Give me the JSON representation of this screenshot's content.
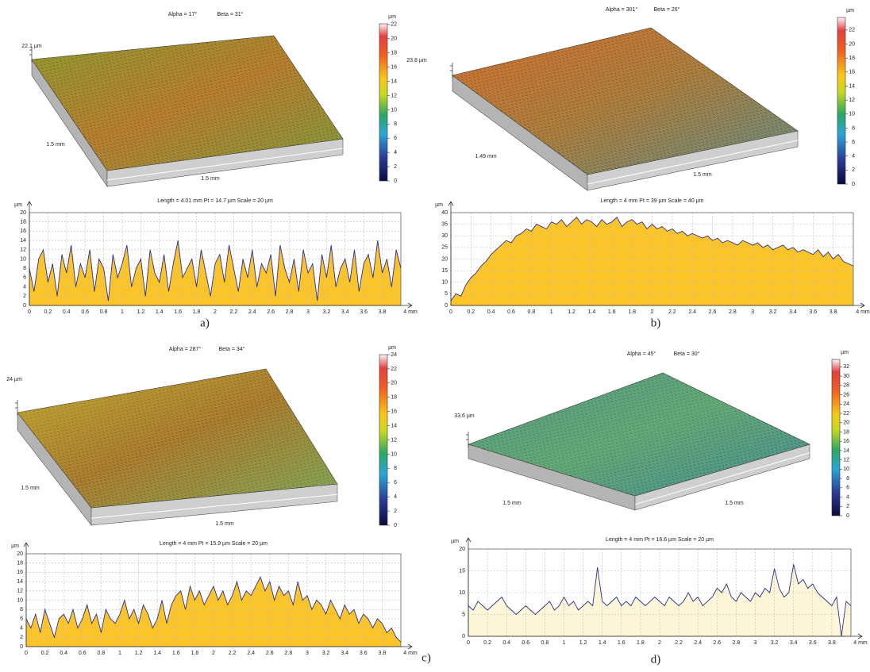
{
  "chart_data": [
    {
      "type": "area",
      "caption": "a)",
      "title": "Length = 4.01 mm  Pt = 14.7 µm  Scale = 20 µm",
      "ylabel": "µm",
      "color": "#2e2e8c",
      "fill": "#fbc52a",
      "xlim": [
        0,
        4
      ],
      "xticks": [
        0,
        0.2,
        0.4,
        0.6,
        0.8,
        1,
        1.2,
        1.4,
        1.6,
        1.8,
        2,
        2.2,
        2.4,
        2.6,
        2.8,
        3,
        3.2,
        3.4,
        3.6,
        3.8,
        {
          "value": 4,
          "label": "4 mm"
        }
      ],
      "ylim": [
        0,
        20
      ],
      "yticks": [
        0,
        2,
        4,
        6,
        8,
        10,
        12,
        14,
        16,
        18,
        20
      ],
      "grid": true,
      "x": [
        0,
        0.05,
        0.1,
        0.15,
        0.2,
        0.25,
        0.3,
        0.35,
        0.4,
        0.45,
        0.5,
        0.55,
        0.6,
        0.65,
        0.7,
        0.75,
        0.8,
        0.85,
        0.9,
        0.95,
        1,
        1.05,
        1.1,
        1.15,
        1.2,
        1.25,
        1.3,
        1.35,
        1.4,
        1.45,
        1.5,
        1.55,
        1.6,
        1.65,
        1.7,
        1.75,
        1.8,
        1.85,
        1.9,
        1.95,
        2,
        2.05,
        2.1,
        2.15,
        2.2,
        2.25,
        2.3,
        2.35,
        2.4,
        2.45,
        2.5,
        2.55,
        2.6,
        2.65,
        2.7,
        2.75,
        2.8,
        2.85,
        2.9,
        2.95,
        3,
        3.05,
        3.1,
        3.15,
        3.2,
        3.25,
        3.3,
        3.35,
        3.4,
        3.45,
        3.5,
        3.55,
        3.6,
        3.65,
        3.7,
        3.75,
        3.8,
        3.85,
        3.9,
        3.95,
        4
      ],
      "values": [
        8,
        3,
        10,
        12,
        5,
        9,
        2,
        11,
        7,
        13,
        4,
        9,
        6,
        12,
        3,
        10,
        8,
        1,
        11,
        6,
        9,
        13,
        4,
        8,
        10,
        2,
        12,
        7,
        5,
        11,
        3,
        9,
        14,
        6,
        8,
        10,
        4,
        12,
        7,
        2,
        9,
        11,
        5,
        13,
        8,
        3,
        10,
        6,
        12,
        4,
        9,
        7,
        11,
        2,
        13,
        8,
        5,
        10,
        3,
        12,
        7,
        9,
        1,
        11,
        6,
        13,
        4,
        8,
        10,
        5,
        12,
        3,
        9,
        11,
        6,
        14,
        7,
        10,
        4,
        12,
        8
      ],
      "surface": {
        "alpha": "Alpha = 17°",
        "beta": "Beta = 31°",
        "height_label": "22.1 µm",
        "side_labels": [
          "1.5 mm",
          "1.5 mm"
        ],
        "colorbar_unit": "µm",
        "colorbar_lim": [
          0,
          22.1
        ],
        "colorbar_ticks": [
          0,
          2,
          4,
          6,
          8,
          10,
          12,
          14,
          16,
          18,
          20,
          22
        ]
      }
    },
    {
      "type": "area",
      "caption": "b)",
      "title": "Length = 4 mm  Pt = 39 µm  Scale = 40 µm",
      "ylabel": "µm",
      "color": "#2e2e8c",
      "fill": "#fbc52a",
      "xlim": [
        0,
        4
      ],
      "xticks": [
        0,
        0.2,
        0.4,
        0.6,
        0.8,
        1,
        1.2,
        1.4,
        1.6,
        1.8,
        2,
        2.2,
        2.4,
        2.6,
        2.8,
        3,
        3.2,
        3.4,
        3.6,
        3.8,
        {
          "value": 4,
          "label": "4 mm"
        }
      ],
      "ylim": [
        0,
        40
      ],
      "yticks": [
        0,
        5,
        10,
        15,
        20,
        25,
        30,
        35,
        40
      ],
      "grid": true,
      "x": [
        0,
        0.05,
        0.1,
        0.15,
        0.2,
        0.25,
        0.3,
        0.35,
        0.4,
        0.45,
        0.5,
        0.55,
        0.6,
        0.65,
        0.7,
        0.75,
        0.8,
        0.85,
        0.9,
        0.95,
        1,
        1.05,
        1.1,
        1.15,
        1.2,
        1.25,
        1.3,
        1.35,
        1.4,
        1.45,
        1.5,
        1.55,
        1.6,
        1.65,
        1.7,
        1.75,
        1.8,
        1.85,
        1.9,
        1.95,
        2,
        2.05,
        2.1,
        2.15,
        2.2,
        2.25,
        2.3,
        2.35,
        2.4,
        2.45,
        2.5,
        2.55,
        2.6,
        2.65,
        2.7,
        2.75,
        2.8,
        2.85,
        2.9,
        2.95,
        3,
        3.05,
        3.1,
        3.15,
        3.2,
        3.25,
        3.3,
        3.35,
        3.4,
        3.45,
        3.5,
        3.55,
        3.6,
        3.65,
        3.7,
        3.75,
        3.8,
        3.85,
        3.9,
        3.95,
        4
      ],
      "values": [
        2,
        5,
        4,
        9,
        12,
        14,
        17,
        19,
        22,
        24,
        26,
        28,
        27,
        30,
        31,
        33,
        32,
        35,
        34,
        33,
        36,
        35,
        37,
        34,
        36,
        38,
        35,
        37,
        36,
        34,
        37,
        35,
        36,
        38,
        34,
        36,
        37,
        35,
        36,
        33,
        35,
        33,
        34,
        32,
        33,
        31,
        32,
        30,
        31,
        30,
        29,
        30,
        28,
        29,
        27,
        28,
        27,
        26,
        28,
        27,
        26,
        27,
        25,
        26,
        24,
        25,
        26,
        24,
        25,
        23,
        24,
        23,
        22,
        24,
        21,
        23,
        20,
        22,
        19,
        18,
        17
      ],
      "surface": {
        "alpha": "Alpha = 301°",
        "beta": "Beta = 26°",
        "height_label": "23.8 µm",
        "side_labels": [
          "1.49 mm",
          "1.5 mm"
        ],
        "colorbar_unit": "µm",
        "colorbar_lim": [
          0,
          23.8
        ],
        "colorbar_ticks": [
          0,
          2,
          4,
          6,
          8,
          10,
          12,
          14,
          16,
          18,
          20,
          22
        ]
      }
    },
    {
      "type": "area",
      "caption": "c)",
      "title": "Length = 4 mm  Pt = 15.9 µm  Scale = 20 µm",
      "ylabel": "µm",
      "color": "#2e2e8c",
      "fill": "#fbc52a",
      "xlim": [
        0,
        4
      ],
      "xticks": [
        0,
        0.2,
        0.4,
        0.6,
        0.8,
        1,
        1.2,
        1.4,
        1.6,
        1.8,
        2,
        2.2,
        2.4,
        2.6,
        2.8,
        3,
        3.2,
        3.4,
        3.6,
        3.8,
        {
          "value": 4,
          "label": "4 mm"
        }
      ],
      "ylim": [
        0,
        20
      ],
      "yticks": [
        0,
        2,
        4,
        6,
        8,
        10,
        12,
        14,
        16,
        18,
        20
      ],
      "grid": true,
      "x": [
        0,
        0.05,
        0.1,
        0.15,
        0.2,
        0.25,
        0.3,
        0.35,
        0.4,
        0.45,
        0.5,
        0.55,
        0.6,
        0.65,
        0.7,
        0.75,
        0.8,
        0.85,
        0.9,
        0.95,
        1,
        1.05,
        1.1,
        1.15,
        1.2,
        1.25,
        1.3,
        1.35,
        1.4,
        1.45,
        1.5,
        1.55,
        1.6,
        1.65,
        1.7,
        1.75,
        1.8,
        1.85,
        1.9,
        1.95,
        2,
        2.05,
        2.1,
        2.15,
        2.2,
        2.25,
        2.3,
        2.35,
        2.4,
        2.45,
        2.5,
        2.55,
        2.6,
        2.65,
        2.7,
        2.75,
        2.8,
        2.85,
        2.9,
        2.95,
        3,
        3.05,
        3.1,
        3.15,
        3.2,
        3.25,
        3.3,
        3.35,
        3.4,
        3.45,
        3.5,
        3.55,
        3.6,
        3.65,
        3.7,
        3.75,
        3.8,
        3.85,
        3.9,
        3.95,
        4
      ],
      "values": [
        6,
        4,
        7,
        3,
        8,
        5,
        2,
        6,
        7,
        5,
        8,
        4,
        6,
        9,
        5,
        7,
        3,
        8,
        6,
        5,
        7,
        10,
        6,
        8,
        5,
        9,
        7,
        4,
        6,
        10,
        5,
        9,
        11,
        12,
        8,
        13,
        10,
        12,
        9,
        11,
        13,
        10,
        12,
        9,
        11,
        14,
        10,
        12,
        11,
        13,
        15,
        12,
        14,
        10,
        13,
        11,
        12,
        9,
        14,
        10,
        11,
        8,
        10,
        9,
        7,
        10,
        8,
        6,
        9,
        7,
        8,
        5,
        7,
        6,
        4,
        6,
        5,
        3,
        4,
        2,
        1
      ],
      "surface": {
        "alpha": "Alpha = 287°",
        "beta": "Beta = 34°",
        "height_label": "24 µm",
        "side_labels": [
          "1.5 mm",
          "1.5 mm"
        ],
        "colorbar_unit": "µm",
        "colorbar_lim": [
          0,
          24
        ],
        "colorbar_ticks": [
          0,
          2,
          4,
          6,
          8,
          10,
          12,
          14,
          16,
          18,
          20,
          22,
          24
        ]
      }
    },
    {
      "type": "area",
      "caption": "d)",
      "title": "Length = 4 mm  Pt = 16.6 µm  Scale = 20 µm",
      "ylabel": "µm",
      "color": "#2e2e8c",
      "fill": "#fdf6d8",
      "xlim": [
        0,
        4
      ],
      "xticks": [
        0,
        0.2,
        0.4,
        0.6,
        0.8,
        1,
        1.2,
        1.4,
        1.6,
        1.8,
        2,
        2.2,
        2.4,
        2.6,
        2.8,
        3,
        3.2,
        3.4,
        3.6,
        3.8,
        {
          "value": 4,
          "label": "4 mm"
        }
      ],
      "ylim": [
        0,
        20
      ],
      "yticks": [
        0,
        5,
        10,
        15,
        20
      ],
      "grid": true,
      "x": [
        0,
        0.05,
        0.1,
        0.15,
        0.2,
        0.25,
        0.3,
        0.35,
        0.4,
        0.45,
        0.5,
        0.55,
        0.6,
        0.65,
        0.7,
        0.75,
        0.8,
        0.85,
        0.9,
        0.95,
        1,
        1.05,
        1.1,
        1.15,
        1.2,
        1.25,
        1.3,
        1.35,
        1.4,
        1.45,
        1.5,
        1.55,
        1.6,
        1.65,
        1.7,
        1.75,
        1.8,
        1.85,
        1.9,
        1.95,
        2,
        2.05,
        2.1,
        2.15,
        2.2,
        2.25,
        2.3,
        2.35,
        2.4,
        2.45,
        2.5,
        2.55,
        2.6,
        2.65,
        2.7,
        2.75,
        2.8,
        2.85,
        2.9,
        2.95,
        3,
        3.05,
        3.1,
        3.15,
        3.2,
        3.25,
        3.3,
        3.35,
        3.4,
        3.45,
        3.5,
        3.55,
        3.6,
        3.65,
        3.7,
        3.75,
        3.8,
        3.85,
        3.9,
        3.95,
        4
      ],
      "values": [
        7,
        6,
        8,
        7,
        6,
        7,
        8,
        9,
        7,
        6,
        5,
        6,
        7,
        6,
        5,
        6,
        7,
        8,
        6,
        7,
        9,
        7,
        8,
        6,
        7,
        8,
        7,
        15.8,
        8,
        7,
        8,
        9,
        7,
        8,
        7,
        9,
        8,
        7,
        8,
        9,
        8,
        7,
        9,
        8,
        7,
        8,
        10,
        8,
        9,
        7,
        8,
        9,
        11,
        10,
        12,
        9,
        8,
        10,
        9,
        8,
        10,
        9,
        11,
        10,
        15.5,
        11,
        9,
        10,
        16.5,
        12,
        13,
        11,
        12,
        10,
        9,
        8,
        7,
        9,
        0,
        8,
        7
      ],
      "surface": {
        "alpha": "Alpha = 45°",
        "beta": "Beta = 30°",
        "height_label": "33.6 µm",
        "side_labels": [
          "1.5 mm",
          "1.5 mm"
        ],
        "colorbar_unit": "µm",
        "colorbar_lim": [
          0,
          33.6
        ],
        "colorbar_ticks": [
          0,
          2,
          4,
          6,
          8,
          10,
          12,
          14,
          16,
          18,
          20,
          22,
          24,
          26,
          28,
          30,
          32
        ]
      }
    }
  ]
}
